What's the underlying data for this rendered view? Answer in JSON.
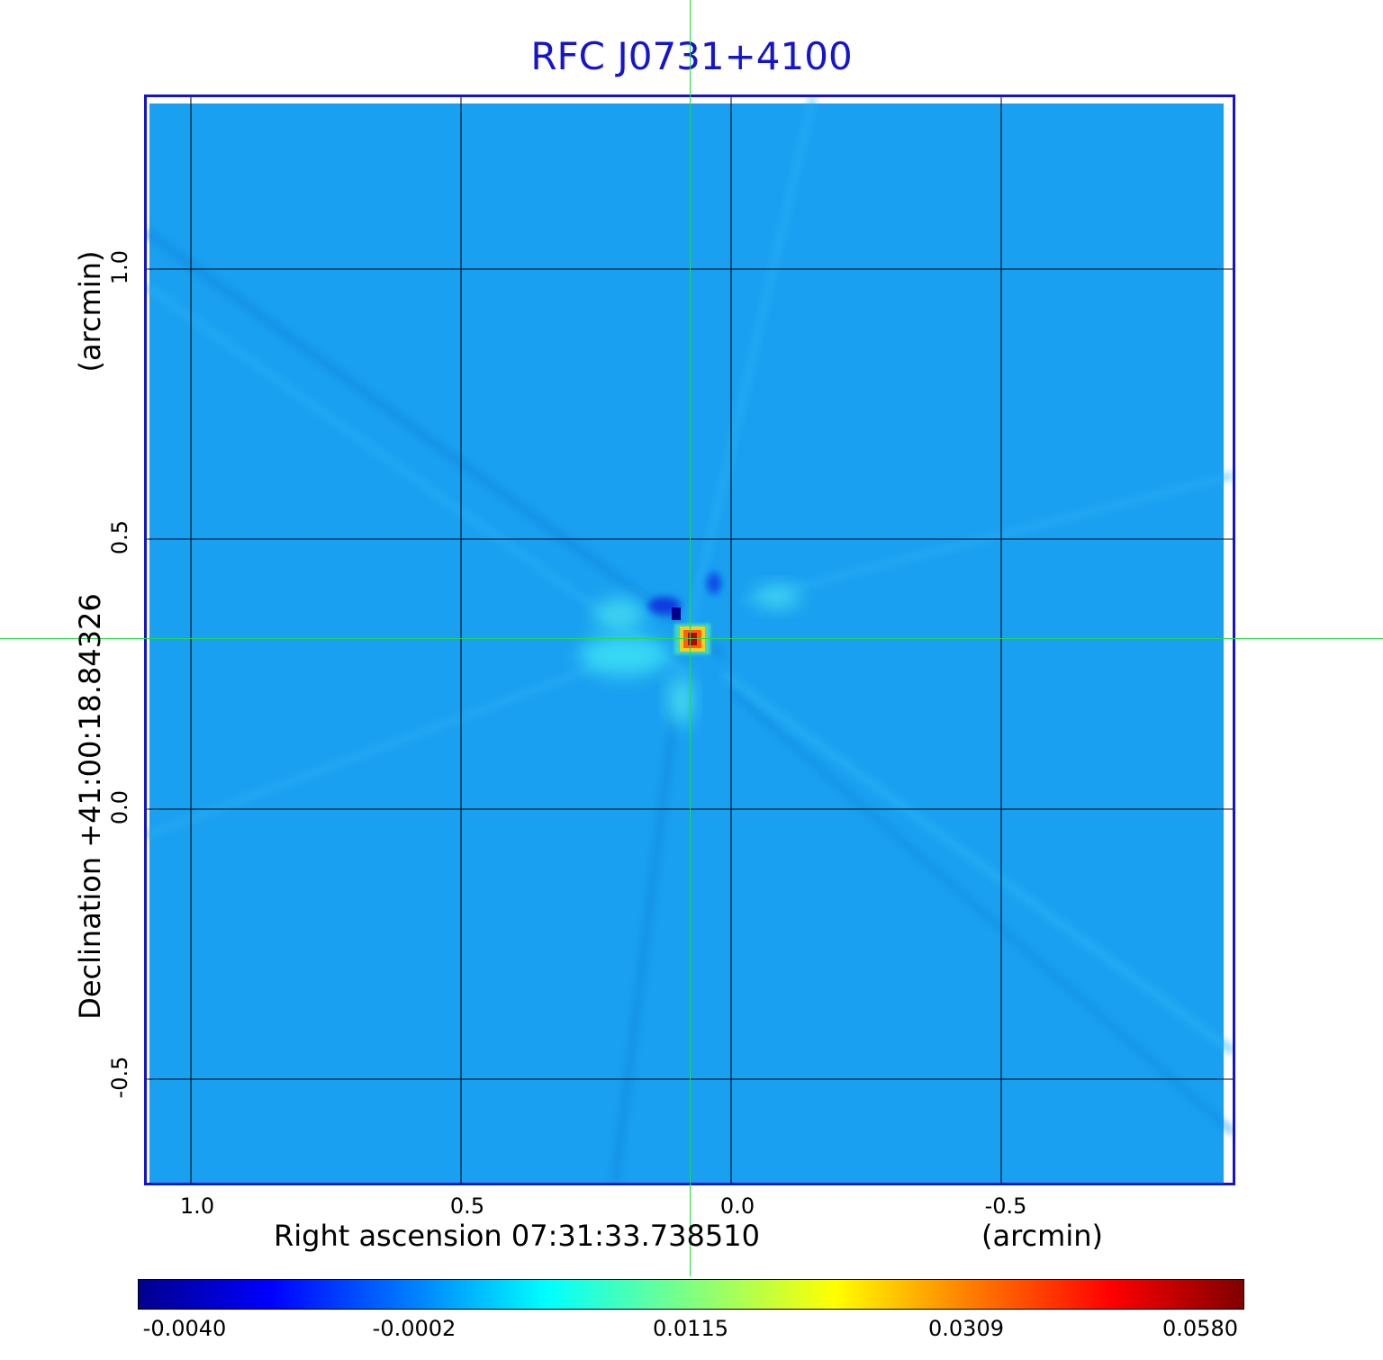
{
  "title": "RFC J0731+4100",
  "x_axis": {
    "label": "Right ascension  07:31:33.738510",
    "unit": "(arcmin)",
    "ticks": [
      "1.0",
      "0.5",
      "0.0",
      "-0.5"
    ]
  },
  "y_axis": {
    "label": "Declination  +41:00:18.84326",
    "unit": "(arcmin)",
    "ticks": [
      "1.0",
      "0.5",
      "0.0",
      "-0.5"
    ]
  },
  "colorbar": {
    "ticks": [
      "-0.0040",
      "-0.0002",
      "0.0115",
      "0.0309",
      "0.0580"
    ],
    "colormap": "jet"
  },
  "colors": {
    "background_field": "#1aa0f0",
    "frame": "#1414c8",
    "title": "#1414d2",
    "crosshair": "#22dd44",
    "grid": "#000000"
  }
}
